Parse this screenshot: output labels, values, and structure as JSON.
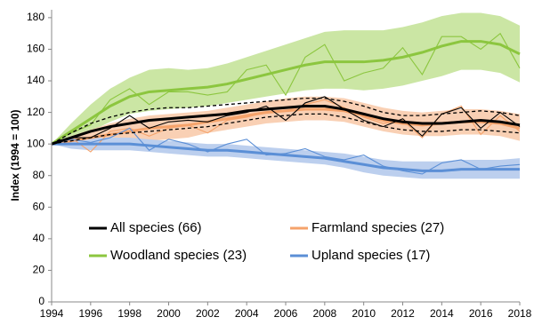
{
  "chart_data": {
    "type": "line",
    "ylabel": "Index (1994 = 100)",
    "x": [
      1994,
      1995,
      1996,
      1997,
      1998,
      1999,
      2000,
      2001,
      2002,
      2003,
      2004,
      2005,
      2006,
      2007,
      2008,
      2009,
      2010,
      2011,
      2012,
      2013,
      2014,
      2015,
      2016,
      2017,
      2018
    ],
    "xlim": [
      1994,
      2018
    ],
    "xticks": [
      1994,
      1996,
      1998,
      2000,
      2002,
      2004,
      2006,
      2008,
      2010,
      2012,
      2014,
      2016,
      2018
    ],
    "ylim": [
      0,
      185
    ],
    "yticks": [
      0,
      20,
      40,
      60,
      80,
      100,
      120,
      140,
      160,
      180
    ],
    "series": [
      {
        "name": "Woodland species (23)",
        "color": "#8cc63f",
        "band_color": "#cbe6a4",
        "band_style": "fill",
        "values": [
          100,
          107,
          112,
          128,
          135,
          125,
          133,
          133,
          131,
          133,
          147,
          150,
          131,
          155,
          163,
          140,
          145,
          148,
          161,
          144,
          168,
          168,
          160,
          170,
          148
        ],
        "trend": [
          100,
          108,
          116,
          124,
          130,
          133,
          134,
          135,
          136,
          138,
          141,
          144,
          147,
          150,
          152,
          152,
          152,
          153,
          155,
          158,
          162,
          165,
          165,
          163,
          157
        ],
        "upper": [
          100,
          113,
          125,
          135,
          142,
          147,
          148,
          147,
          148,
          151,
          155,
          159,
          163,
          167,
          171,
          172,
          172,
          172,
          174,
          177,
          181,
          183,
          183,
          181,
          175
        ],
        "lower": [
          100,
          103,
          108,
          114,
          119,
          121,
          122,
          123,
          124,
          126,
          128,
          130,
          132,
          134,
          135,
          135,
          134,
          135,
          137,
          140,
          143,
          147,
          147,
          145,
          139
        ]
      },
      {
        "name": "Farmland species (27)",
        "color": "#f5a36b",
        "band_color": "#f9d0b4",
        "band_style": "fill",
        "values": [
          100,
          104,
          95,
          108,
          110,
          105,
          110,
          112,
          107,
          115,
          117,
          120,
          121,
          125,
          128,
          123,
          117,
          113,
          115,
          104,
          119,
          124,
          106,
          118,
          108
        ],
        "trend": [
          100,
          102,
          104,
          106,
          108,
          110,
          111,
          112,
          114,
          116,
          118,
          120,
          121,
          122,
          122,
          121,
          118,
          115,
          113,
          112,
          113,
          114,
          114,
          113,
          110
        ],
        "upper": [
          100,
          105,
          109,
          113,
          116,
          118,
          119,
          120,
          121,
          123,
          125,
          127,
          129,
          130,
          130,
          129,
          126,
          123,
          121,
          120,
          121,
          122,
          122,
          121,
          119
        ],
        "lower": [
          100,
          99,
          100,
          100,
          101,
          102,
          103,
          104,
          107,
          109,
          111,
          113,
          114,
          115,
          115,
          114,
          111,
          108,
          106,
          105,
          105,
          106,
          106,
          105,
          102
        ]
      },
      {
        "name": "Upland species (17)",
        "color": "#5b8fd6",
        "band_color": "#bccfee",
        "band_style": "fill",
        "values": [
          100,
          103,
          101,
          104,
          110,
          96,
          103,
          100,
          95,
          100,
          103,
          93,
          94,
          97,
          92,
          90,
          93,
          86,
          83,
          81,
          88,
          90,
          84,
          86,
          87
        ],
        "trend": [
          100,
          100,
          100,
          100,
          100,
          99,
          98,
          97,
          96,
          96,
          95,
          94,
          93,
          92,
          91,
          89,
          87,
          85,
          84,
          83,
          83,
          84,
          84,
          84,
          84
        ],
        "upper": [
          100,
          103,
          104,
          104,
          104,
          103,
          102,
          101,
          100,
          100,
          99,
          98,
          97,
          96,
          95,
          94,
          92,
          90,
          89,
          89,
          89,
          90,
          90,
          90,
          91
        ],
        "lower": [
          100,
          97,
          96,
          96,
          96,
          95,
          94,
          93,
          92,
          92,
          91,
          90,
          89,
          88,
          87,
          85,
          82,
          80,
          79,
          78,
          78,
          78,
          78,
          78,
          78
        ]
      },
      {
        "name": "All species (66)",
        "color": "#000000",
        "band_color": "#000000",
        "band_style": "dashed",
        "values": [
          100,
          104,
          104,
          110,
          118,
          110,
          114,
          115,
          114,
          118,
          120,
          124,
          115,
          126,
          130,
          122,
          115,
          111,
          116,
          105,
          119,
          123,
          110,
          120,
          111
        ],
        "trend": [
          100,
          104,
          108,
          111,
          113,
          115,
          116,
          117,
          118,
          119,
          121,
          122,
          123,
          124,
          124,
          122,
          119,
          116,
          114,
          113,
          113,
          114,
          115,
          114,
          112
        ],
        "upper": [
          100,
          107,
          113,
          117,
          120,
          122,
          123,
          123,
          124,
          125,
          126,
          127,
          128,
          129,
          129,
          127,
          124,
          120,
          118,
          118,
          119,
          120,
          121,
          120,
          118
        ],
        "lower": [
          100,
          102,
          104,
          106,
          107,
          108,
          109,
          110,
          111,
          113,
          115,
          117,
          118,
          119,
          119,
          117,
          114,
          111,
          109,
          108,
          108,
          109,
          109,
          108,
          107
        ]
      }
    ]
  }
}
